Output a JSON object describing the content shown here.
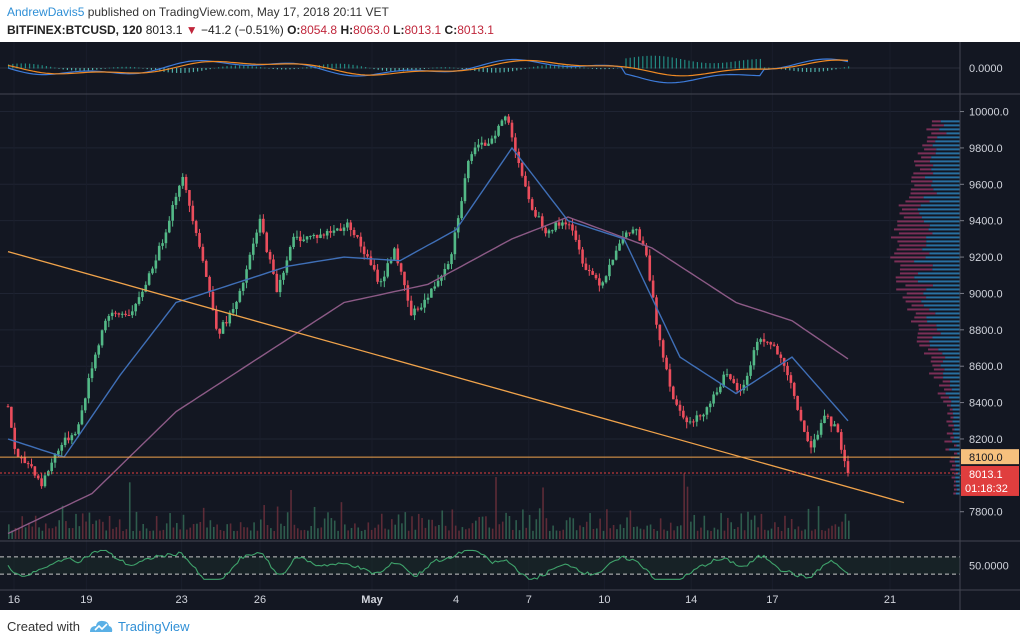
{
  "header": {
    "author": "AndrewDavis5",
    "published_text": " published on TradingView.com, May 17, 2018 20:11 VET",
    "symbol": "BITFINEX:BTCUSD, 120",
    "last": "8013.1",
    "change": "−41.2 (−0.51%)",
    "o_label": "O:",
    "o_value": "8054.8",
    "h_label": "H:",
    "h_value": "8063.0",
    "l_label": "L:",
    "l_value": "8013.1",
    "c_label": "C:",
    "c_value": "8013.1"
  },
  "footer": {
    "created_with": "Created with",
    "brand": "TradingView"
  },
  "colors": {
    "background": "#131722",
    "up": "#53b987",
    "down": "#eb4d5c",
    "ma_fast": "#3f6fb7",
    "ma_slow": "#8c5a86",
    "trendline": "#f0a34b",
    "axis_bg": "#1e222d",
    "macd": "#3d7bd9",
    "signal": "#f08a24",
    "rsi": "#3fa26b",
    "price_tag": "#e03e3e",
    "level_tag": "#f6c07d"
  },
  "chart_data": {
    "type": "candlestick",
    "title": "BITFINEX:BTCUSD, 120",
    "ylim": [
      7650,
      10080
    ],
    "y_ticks": [
      "10000.0",
      "9800.0",
      "9600.0",
      "9400.0",
      "9200.0",
      "9000.0",
      "8800.0",
      "8600.0",
      "8400.0",
      "8200.0",
      "8000.0",
      "7800.0"
    ],
    "x_labels": [
      "16",
      "19",
      "23",
      "26",
      "May",
      "4",
      "7",
      "10",
      "14",
      "17",
      "21"
    ],
    "price_path": [
      {
        "t": 0,
        "p": 8380
      },
      {
        "t": 3,
        "p": 8090
      },
      {
        "t": 8,
        "p": 8060
      },
      {
        "t": 12,
        "p": 7950
      },
      {
        "t": 18,
        "p": 8150
      },
      {
        "t": 25,
        "p": 8260
      },
      {
        "t": 30,
        "p": 8600
      },
      {
        "t": 35,
        "p": 8870
      },
      {
        "t": 45,
        "p": 8900
      },
      {
        "t": 55,
        "p": 9280
      },
      {
        "t": 62,
        "p": 9650
      },
      {
        "t": 68,
        "p": 9300
      },
      {
        "t": 75,
        "p": 8780
      },
      {
        "t": 82,
        "p": 8950
      },
      {
        "t": 90,
        "p": 9400
      },
      {
        "t": 96,
        "p": 9020
      },
      {
        "t": 102,
        "p": 9300
      },
      {
        "t": 112,
        "p": 9320
      },
      {
        "t": 122,
        "p": 9380
      },
      {
        "t": 128,
        "p": 9200
      },
      {
        "t": 133,
        "p": 9050
      },
      {
        "t": 138,
        "p": 9250
      },
      {
        "t": 144,
        "p": 8880
      },
      {
        "t": 150,
        "p": 8980
      },
      {
        "t": 158,
        "p": 9200
      },
      {
        "t": 165,
        "p": 9770
      },
      {
        "t": 172,
        "p": 9840
      },
      {
        "t": 178,
        "p": 9980
      },
      {
        "t": 182,
        "p": 9750
      },
      {
        "t": 186,
        "p": 9500
      },
      {
        "t": 192,
        "p": 9350
      },
      {
        "t": 200,
        "p": 9400
      },
      {
        "t": 206,
        "p": 9150
      },
      {
        "t": 212,
        "p": 9050
      },
      {
        "t": 218,
        "p": 9280
      },
      {
        "t": 224,
        "p": 9360
      },
      {
        "t": 228,
        "p": 9200
      },
      {
        "t": 232,
        "p": 8800
      },
      {
        "t": 238,
        "p": 8400
      },
      {
        "t": 244,
        "p": 8280
      },
      {
        "t": 250,
        "p": 8380
      },
      {
        "t": 256,
        "p": 8550
      },
      {
        "t": 262,
        "p": 8450
      },
      {
        "t": 268,
        "p": 8760
      },
      {
        "t": 274,
        "p": 8700
      },
      {
        "t": 280,
        "p": 8480
      },
      {
        "t": 286,
        "p": 8150
      },
      {
        "t": 292,
        "p": 8320
      },
      {
        "t": 296,
        "p": 8250
      },
      {
        "t": 300,
        "p": 8013.1
      }
    ],
    "ma_fast_path": [
      {
        "t": 0,
        "p": 8200
      },
      {
        "t": 20,
        "p": 8100
      },
      {
        "t": 40,
        "p": 8550
      },
      {
        "t": 60,
        "p": 8950
      },
      {
        "t": 80,
        "p": 9050
      },
      {
        "t": 100,
        "p": 9150
      },
      {
        "t": 120,
        "p": 9200
      },
      {
        "t": 140,
        "p": 9180
      },
      {
        "t": 160,
        "p": 9350
      },
      {
        "t": 180,
        "p": 9800
      },
      {
        "t": 200,
        "p": 9400
      },
      {
        "t": 220,
        "p": 9300
      },
      {
        "t": 240,
        "p": 8650
      },
      {
        "t": 260,
        "p": 8450
      },
      {
        "t": 280,
        "p": 8650
      },
      {
        "t": 300,
        "p": 8300
      }
    ],
    "ma_slow_path": [
      {
        "t": 0,
        "p": 7680
      },
      {
        "t": 30,
        "p": 7900
      },
      {
        "t": 60,
        "p": 8350
      },
      {
        "t": 90,
        "p": 8650
      },
      {
        "t": 120,
        "p": 8950
      },
      {
        "t": 150,
        "p": 9050
      },
      {
        "t": 180,
        "p": 9300
      },
      {
        "t": 200,
        "p": 9420
      },
      {
        "t": 230,
        "p": 9250
      },
      {
        "t": 260,
        "p": 8950
      },
      {
        "t": 280,
        "p": 8850
      },
      {
        "t": 300,
        "p": 8640
      }
    ],
    "trendline": {
      "from": {
        "t": 0,
        "p": 9230
      },
      "to": {
        "t": 320,
        "p": 7850
      }
    },
    "horizontal_level": 8100.0,
    "last_price": 8013.1,
    "price_tag": "8013.1",
    "level_tag": "8100.0",
    "countdown_tag": "01:18:32",
    "macd_label": "0.0000",
    "rsi_label": "50.0000",
    "rsi_upper": 70,
    "rsi_lower": 30,
    "volume_profile_range": [
      7900,
      9950
    ]
  }
}
